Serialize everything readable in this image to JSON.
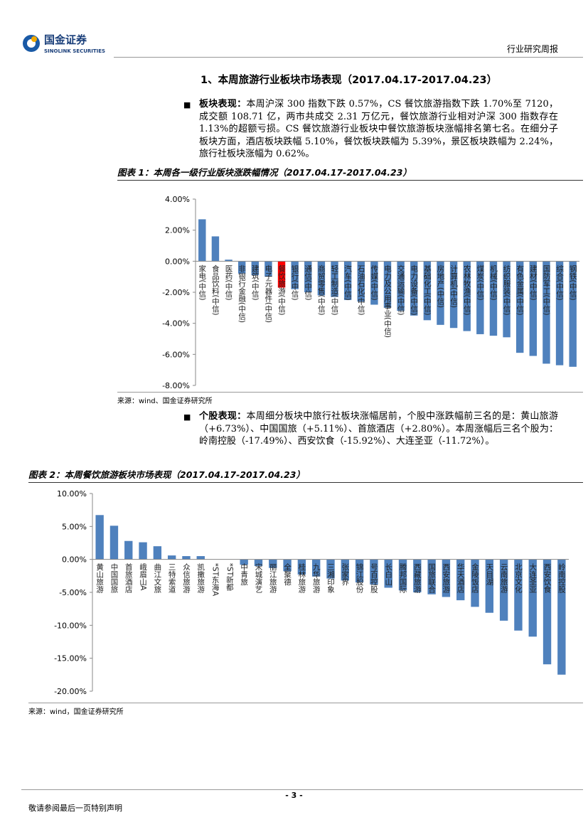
{
  "header": {
    "brand": "国金证券",
    "brand_en": "SINOLINK SECURITIES",
    "report_type": "行业研究周报"
  },
  "section_title": "1、本周旅游行业板块市场表现（2017.04.17-2017.04.23）",
  "paragraphs": [
    {
      "lead": "板块表现：",
      "text": "本周沪深 300 指数下跌 0.57%，CS 餐饮旅游指数下跌 1.70%至 7120，成交额 108.71 亿，两市共成交 2.31 万亿元，餐饮旅游行业相对沪深 300 指数存在 1.13%的超额亏损。CS 餐饮旅游行业板块中餐饮旅游板块涨幅排名第七名。在细分子板块方面，酒店板块跌幅 5.10%，餐饮板块跌幅为 5.39%，景区板块跌幅为 2.24%，旅行社板块涨幅为 0.62%。"
    },
    {
      "lead": "个股表现：",
      "text": "本周细分板块中旅行社板块涨幅居前，个股中涨跌幅前三名的是：黄山旅游（+6.73%）、中国国旅（+5.11%）、首旅酒店（+2.80%）。本周涨幅后三名个股为：岭南控股（-17.49%）、西安饮食（-15.92%）、大连圣亚（-11.72%）。"
    }
  ],
  "chart_data": [
    {
      "type": "bar",
      "title": "图表 1：本周各一级行业版块涨跌幅情况（2017.04.17-2017.04.23）",
      "source": "来源：wind、国金证券研究所",
      "categories": [
        "家电(中信)",
        "食品饮料(中信)",
        "医药(中信)",
        "非银行金融(中信)",
        "建筑(中信)",
        "电子元器件(中信)",
        "餐饮旅游(中信)",
        "银行(中信)",
        "通信(中信)",
        "商贸零售(中信)",
        "轻工制造(中信)",
        "汽车(中信)",
        "石油石化(中信)",
        "传媒(中信)",
        "电力及公用事业(中信)",
        "交通运输(中信)",
        "电力设备(中信)",
        "基础化工(中信)",
        "房地产(中信)",
        "计算机(中信)",
        "农林牧渔(中信)",
        "煤炭(中信)",
        "机械(中信)",
        "纺织服装(中信)",
        "有色金属(中信)",
        "建材(中信)",
        "国防军工(中信)",
        "综合(中信)",
        "钢铁(中信)"
      ],
      "values": [
        2.7,
        1.6,
        0.1,
        -0.8,
        -0.9,
        -1.0,
        -1.7,
        -1.8,
        -2.0,
        -2.2,
        -2.3,
        -2.5,
        -2.6,
        -2.8,
        -3.0,
        -3.2,
        -3.5,
        -3.8,
        -4.1,
        -4.3,
        -4.5,
        -4.7,
        -4.8,
        -4.9,
        -5.9,
        -6.1,
        -6.6,
        -6.7,
        -6.8
      ],
      "colors": [
        "#4f81bd",
        "#4f81bd",
        "#4f81bd",
        "#4f81bd",
        "#4f81bd",
        "#4f81bd",
        "#ff0000",
        "#4f81bd",
        "#4f81bd",
        "#4f81bd",
        "#4f81bd",
        "#4f81bd",
        "#4f81bd",
        "#4f81bd",
        "#4f81bd",
        "#4f81bd",
        "#4f81bd",
        "#4f81bd",
        "#4f81bd",
        "#4f81bd",
        "#4f81bd",
        "#4f81bd",
        "#4f81bd",
        "#4f81bd",
        "#4f81bd",
        "#4f81bd",
        "#4f81bd",
        "#4f81bd",
        "#4f81bd"
      ],
      "ylim": [
        -8,
        4
      ],
      "yticks": [
        {
          "value": 4,
          "label": "4.00%"
        },
        {
          "value": 2,
          "label": "2.00%"
        },
        {
          "value": 0,
          "label": "0.00%"
        },
        {
          "value": -2,
          "label": "-2.00%"
        },
        {
          "value": -4,
          "label": "-4.00%"
        },
        {
          "value": -6,
          "label": "-6.00%"
        },
        {
          "value": -8,
          "label": "-8.00%"
        }
      ]
    },
    {
      "type": "bar",
      "title": "图表 2：本周餐饮旅游板块市场表现（2017.04.17-2017.04.23）",
      "source": "来源：wind，国金证券研究所",
      "categories": [
        "黄山旅游",
        "中国国旅",
        "首旅酒店",
        "峨眉山A",
        "曲江文旅",
        "三特索道",
        "众信旅游",
        "凯撒旅游",
        "*ST东海A",
        "*ST新都",
        "中青旅",
        "宋城演艺",
        "丽江旅游",
        "全聚德",
        "桂林旅游",
        "九华旅游",
        "三湘印象",
        "张家界",
        "锦江股份",
        "号百控股",
        "长白山",
        "腾邦国际",
        "西藏旅游",
        "国旅联合",
        "西安旅游",
        "华天酒店",
        "金陵饭店",
        "天目湖",
        "云南旅游",
        "北京文化",
        "大连圣亚",
        "西安饮食",
        "岭南控股"
      ],
      "values": [
        6.73,
        5.11,
        2.8,
        2.6,
        2.0,
        0.6,
        0.5,
        0.5,
        0,
        0,
        -0.8,
        -1.0,
        -1.3,
        -1.8,
        -2.3,
        -2.6,
        -2.9,
        -3.2,
        -3.5,
        -3.8,
        -4.3,
        -4.7,
        -5.0,
        -5.3,
        -5.7,
        -6.2,
        -7.2,
        -8.1,
        -9.3,
        -10.8,
        -11.72,
        -15.92,
        -17.49
      ],
      "color": "#4f81bd",
      "ylim": [
        -20,
        10
      ],
      "yticks": [
        {
          "value": 10,
          "label": "10.00%"
        },
        {
          "value": 5,
          "label": "5.00%"
        },
        {
          "value": 0,
          "label": "0.00%"
        },
        {
          "value": -5,
          "label": "-5.00%"
        },
        {
          "value": -10,
          "label": "-10.00%"
        },
        {
          "value": -15,
          "label": "-15.00%"
        },
        {
          "value": -20,
          "label": "-20.00%"
        }
      ]
    }
  ],
  "footer": {
    "page": "- 3 -",
    "disclaimer": "敬请参阅最后一页特别声明"
  }
}
